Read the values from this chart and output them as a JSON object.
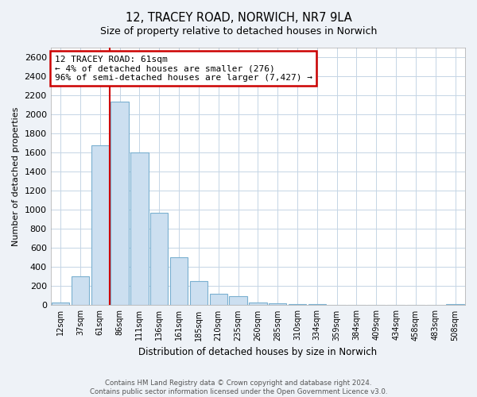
{
  "title": "12, TRACEY ROAD, NORWICH, NR7 9LA",
  "subtitle": "Size of property relative to detached houses in Norwich",
  "xlabel": "Distribution of detached houses by size in Norwich",
  "ylabel": "Number of detached properties",
  "bin_labels": [
    "12sqm",
    "37sqm",
    "61sqm",
    "86sqm",
    "111sqm",
    "136sqm",
    "161sqm",
    "185sqm",
    "210sqm",
    "235sqm",
    "260sqm",
    "285sqm",
    "310sqm",
    "334sqm",
    "359sqm",
    "384sqm",
    "409sqm",
    "434sqm",
    "458sqm",
    "483sqm",
    "508sqm"
  ],
  "bar_values": [
    25,
    300,
    1680,
    2130,
    1600,
    965,
    505,
    250,
    120,
    95,
    30,
    18,
    10,
    8,
    5,
    4,
    3,
    2,
    2,
    2,
    15
  ],
  "bar_color": "#ccdff0",
  "bar_edge_color": "#7ab0d0",
  "property_line_x": 2.5,
  "property_line_color": "#cc0000",
  "annotation_line1": "12 TRACEY ROAD: 61sqm",
  "annotation_line2": "← 4% of detached houses are smaller (276)",
  "annotation_line3": "96% of semi-detached houses are larger (7,427) →",
  "annotation_box_color": "#cc0000",
  "ylim": [
    0,
    2700
  ],
  "yticks": [
    0,
    200,
    400,
    600,
    800,
    1000,
    1200,
    1400,
    1600,
    1800,
    2000,
    2200,
    2400,
    2600
  ],
  "footer_line1": "Contains HM Land Registry data © Crown copyright and database right 2024.",
  "footer_line2": "Contains public sector information licensed under the Open Government Licence v3.0.",
  "background_color": "#eef2f7",
  "plot_bg_color": "#ffffff",
  "grid_color": "#c5d5e5"
}
